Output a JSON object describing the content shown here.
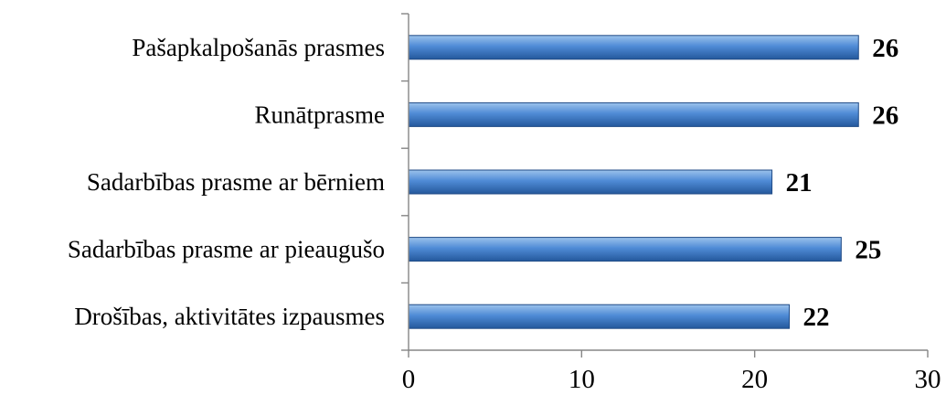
{
  "chart_data": {
    "type": "bar",
    "orientation": "horizontal",
    "categories": [
      "Pašapkalpošanās prasmes",
      "Runātprasme",
      "Sadarbības prasme ar bērniem",
      "Sadarbības prasme ar pieaugušo",
      "Drošības, aktivitātes izpausmes"
    ],
    "values": [
      26,
      26,
      21,
      25,
      22
    ],
    "value_labels": [
      "26",
      "26",
      "21",
      "25",
      "22"
    ],
    "xlim": [
      0,
      30
    ],
    "xticks": [
      0,
      10,
      20,
      30
    ],
    "xtick_labels": [
      "0",
      "10",
      "20",
      "30"
    ],
    "title": "",
    "xlabel": "",
    "ylabel": "",
    "grid": false,
    "legend": "none",
    "colors": {
      "bar_light": "#9cc3ec",
      "bar_mid": "#4f8bd6",
      "bar_dark": "#24589c",
      "bar_edge": "#1f4a86",
      "axis": "#868686"
    }
  }
}
